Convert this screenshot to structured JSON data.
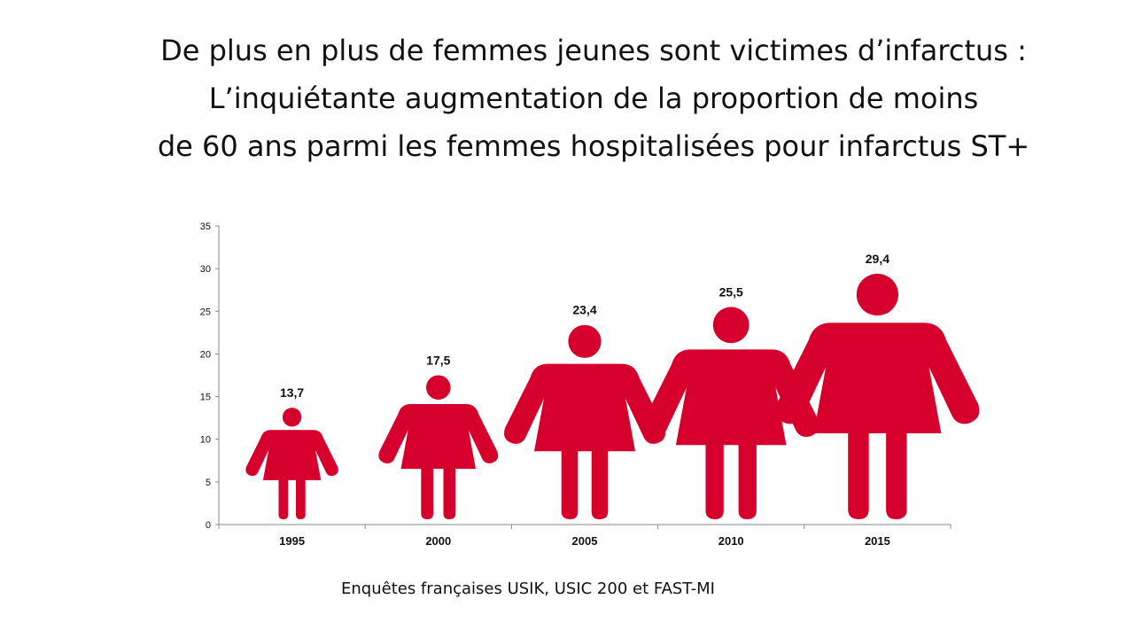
{
  "title_lines": [
    "De plus en plus de femmes jeunes sont victimes d’infarctus :",
    "L’inquiétante augmentation de la proportion de moins",
    "de 60 ans parmi les femmes hospitalisées pour infarctus ST+"
  ],
  "source": "Enquêtes françaises USIK, USIC 200 et FAST-MI",
  "colors": {
    "figure": "#d5002c",
    "axis": "#888888",
    "text": "#111111"
  },
  "chart_data": {
    "type": "bar",
    "mark": "woman-pictogram",
    "categories": [
      "1995",
      "2000",
      "2005",
      "2010",
      "2015"
    ],
    "values": [
      13.7,
      17.5,
      23.4,
      25.5,
      29.4
    ],
    "value_labels": [
      "13,7",
      "17,5",
      "23,4",
      "25,5",
      "29,4"
    ],
    "ylim": [
      0,
      35
    ],
    "yticks": [
      0,
      5,
      10,
      15,
      20,
      25,
      30,
      35
    ],
    "grid": false,
    "legend": "none"
  }
}
